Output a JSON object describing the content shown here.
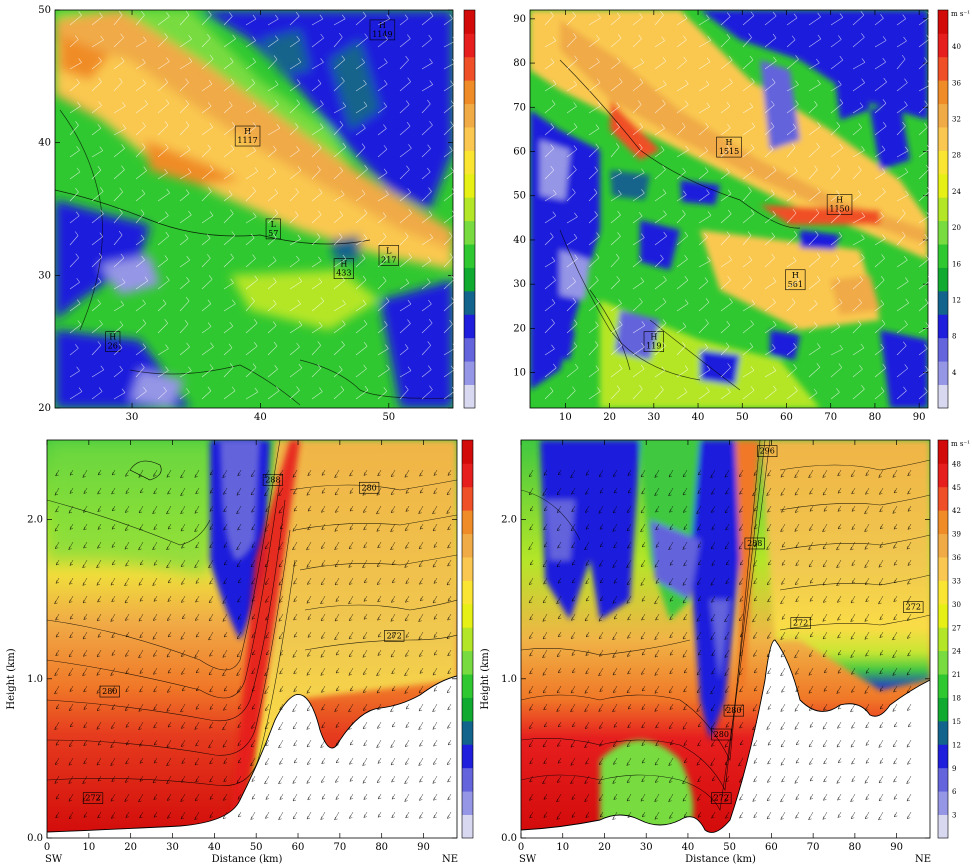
{
  "chart_data": [
    {
      "type": "heatmap",
      "panel": "top-left",
      "x_ticks": [
        "30",
        "40",
        "50"
      ],
      "y_ticks": [
        "20",
        "30",
        "40",
        "50"
      ],
      "xlim": [
        24,
        55
      ],
      "ylim": [
        20,
        50
      ],
      "colorbar_unit": "",
      "colorbar_labels": [],
      "labels": [
        {
          "text": "H\n1149",
          "x": 49.5,
          "y": 48.5
        },
        {
          "text": "H\n1117",
          "x": 39,
          "y": 40.5
        },
        {
          "text": "L\n57",
          "x": 41,
          "y": 33.5
        },
        {
          "text": "H\n433",
          "x": 46.5,
          "y": 30.5
        },
        {
          "text": "L\n217",
          "x": 50,
          "y": 31.5
        },
        {
          "text": "H\n26",
          "x": 28.5,
          "y": 25
        }
      ]
    },
    {
      "type": "heatmap",
      "panel": "top-right",
      "x_ticks": [
        "10",
        "20",
        "30",
        "40",
        "50",
        "60",
        "70",
        "80",
        "90"
      ],
      "y_ticks": [
        "10",
        "20",
        "30",
        "40",
        "50",
        "60",
        "70",
        "80",
        "90"
      ],
      "xlim": [
        2,
        92
      ],
      "ylim": [
        2,
        92
      ],
      "colorbar_unit": "m s⁻¹",
      "colorbar_labels": [
        "4",
        "8",
        "12",
        "16",
        "20",
        "24",
        "28",
        "32",
        "36",
        "40"
      ],
      "labels": [
        {
          "text": "H\n1515",
          "x": 47,
          "y": 61
        },
        {
          "text": "H\n1150",
          "x": 72,
          "y": 48
        },
        {
          "text": "H\n561",
          "x": 62,
          "y": 31
        },
        {
          "text": "H\n119",
          "x": 30,
          "y": 17
        }
      ]
    },
    {
      "type": "heatmap",
      "panel": "bottom-left",
      "xlabel": "Distance (km)",
      "ylabel": "Height (km)",
      "x_ticks": [
        "0",
        "10",
        "20",
        "30",
        "40",
        "50",
        "60",
        "70",
        "80",
        "90"
      ],
      "y_ticks": [
        "0.0",
        "1.0",
        "2.0"
      ],
      "xlim": [
        0,
        98
      ],
      "ylim": [
        0,
        2.5
      ],
      "x_end_labels": [
        "SW",
        "NE"
      ],
      "colorbar_unit": "",
      "colorbar_labels": [],
      "labels": [
        {
          "text": "288",
          "x": 54,
          "y": 2.25
        },
        {
          "text": "280",
          "x": 77,
          "y": 2.2
        },
        {
          "text": "272",
          "x": 83,
          "y": 1.27
        },
        {
          "text": "280",
          "x": 15,
          "y": 0.92
        },
        {
          "text": "272",
          "x": 11,
          "y": 0.25
        }
      ]
    },
    {
      "type": "heatmap",
      "panel": "bottom-right",
      "xlabel": "Distance (km)",
      "ylabel": "Height (km)",
      "x_ticks": [
        "0",
        "10",
        "20",
        "30",
        "40",
        "50",
        "60",
        "70",
        "80",
        "90"
      ],
      "y_ticks": [
        "0.0",
        "1.0",
        "2.0"
      ],
      "xlim": [
        0,
        98
      ],
      "ylim": [
        0,
        2.5
      ],
      "x_end_labels": [
        "SW",
        "NE"
      ],
      "colorbar_unit": "m s⁻¹",
      "colorbar_labels": [
        "3",
        "6",
        "9",
        "12",
        "15",
        "18",
        "21",
        "24",
        "27",
        "30",
        "33",
        "36",
        "39",
        "42",
        "45",
        "48"
      ],
      "labels": [
        {
          "text": "296",
          "x": 59,
          "y": 2.43
        },
        {
          "text": "288",
          "x": 56,
          "y": 1.85
        },
        {
          "text": "272",
          "x": 67,
          "y": 1.35
        },
        {
          "text": "272",
          "x": 94,
          "y": 1.45
        },
        {
          "text": "280",
          "x": 51,
          "y": 0.8
        },
        {
          "text": "280",
          "x": 48,
          "y": 0.65
        },
        {
          "text": "272",
          "x": 48,
          "y": 0.25
        }
      ]
    }
  ],
  "colors": {
    "palette": [
      "#d8d8f0",
      "#9696e6",
      "#6464dc",
      "#1e1edc",
      "#12648c",
      "#10aa30",
      "#30c830",
      "#78dc40",
      "#b4e628",
      "#e6f014",
      "#fae632",
      "#fac850",
      "#f0aa46",
      "#f08c28",
      "#f05028",
      "#e61e1e",
      "#d20a0a"
    ]
  }
}
